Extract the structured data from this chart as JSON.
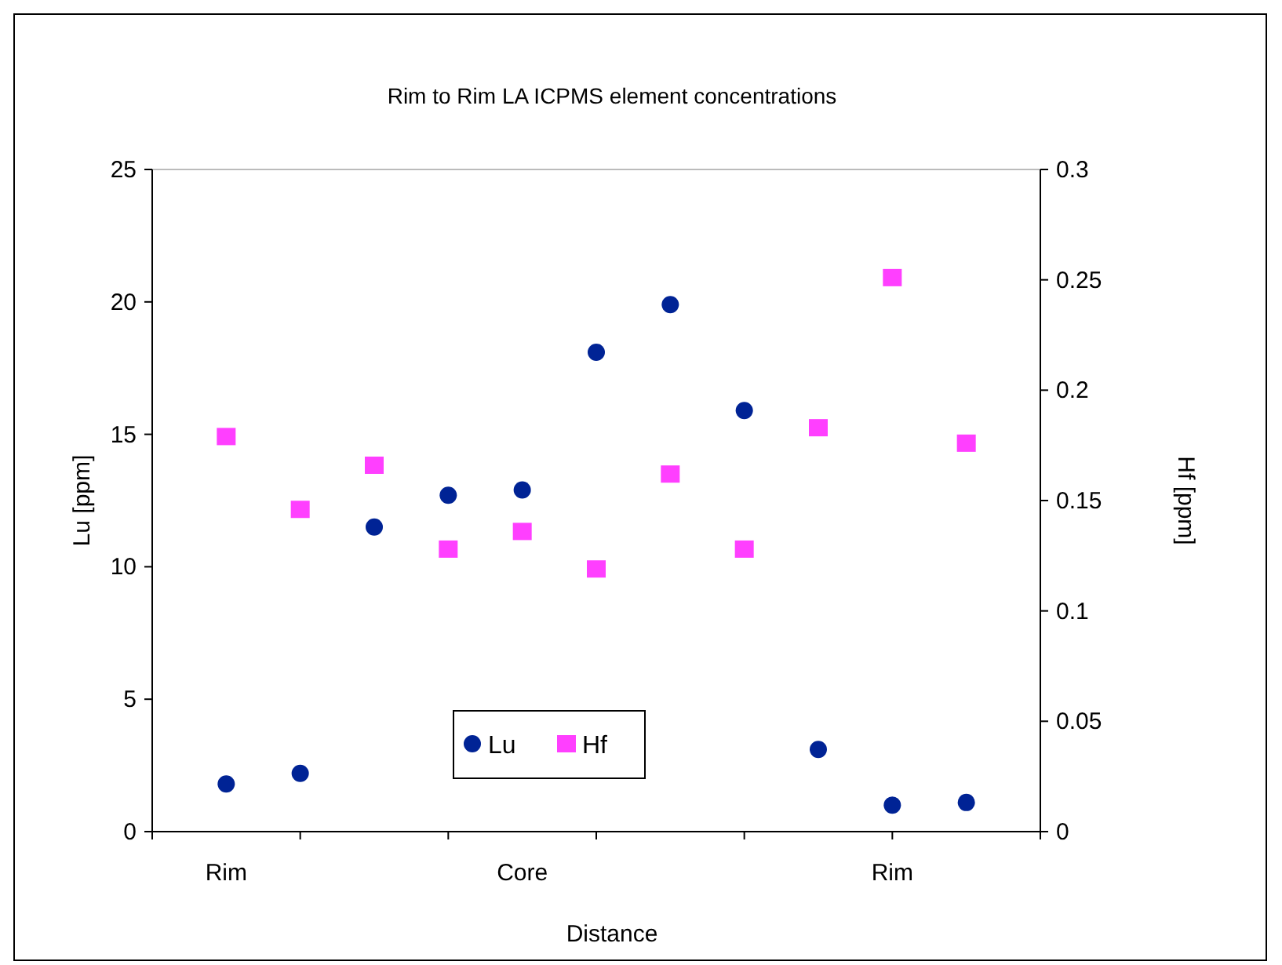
{
  "chart_data": {
    "type": "scatter",
    "title": "Rim to Rim LA ICPMS element concentrations",
    "xlabel": "Distance",
    "ylabel": "Lu [ppm]",
    "y2label": "Hf [ppm]",
    "categories": [
      "Rim",
      null,
      null,
      null,
      "Core",
      null,
      null,
      null,
      null,
      "Rim",
      null
    ],
    "ylim": [
      0,
      25
    ],
    "yticks": [
      0,
      5,
      10,
      15,
      20,
      25
    ],
    "y2lim": [
      0,
      0.3
    ],
    "y2ticks": [
      0,
      0.05,
      0.1,
      0.15,
      0.2,
      0.25,
      0.3
    ],
    "legend": "bottom",
    "grid": false,
    "series": [
      {
        "name": "Lu",
        "color": "#002395",
        "marker": "circle",
        "values": [
          1.8,
          2.2,
          11.5,
          12.7,
          12.9,
          18.1,
          19.9,
          15.9,
          3.1,
          1.0,
          1.1
        ]
      },
      {
        "name": "Hf",
        "color": "#ff3fff",
        "marker": "square",
        "axis": "y2",
        "values": [
          0.179,
          0.146,
          0.166,
          0.128,
          0.136,
          0.119,
          0.162,
          0.128,
          0.183,
          0.251,
          0.176
        ]
      }
    ]
  }
}
